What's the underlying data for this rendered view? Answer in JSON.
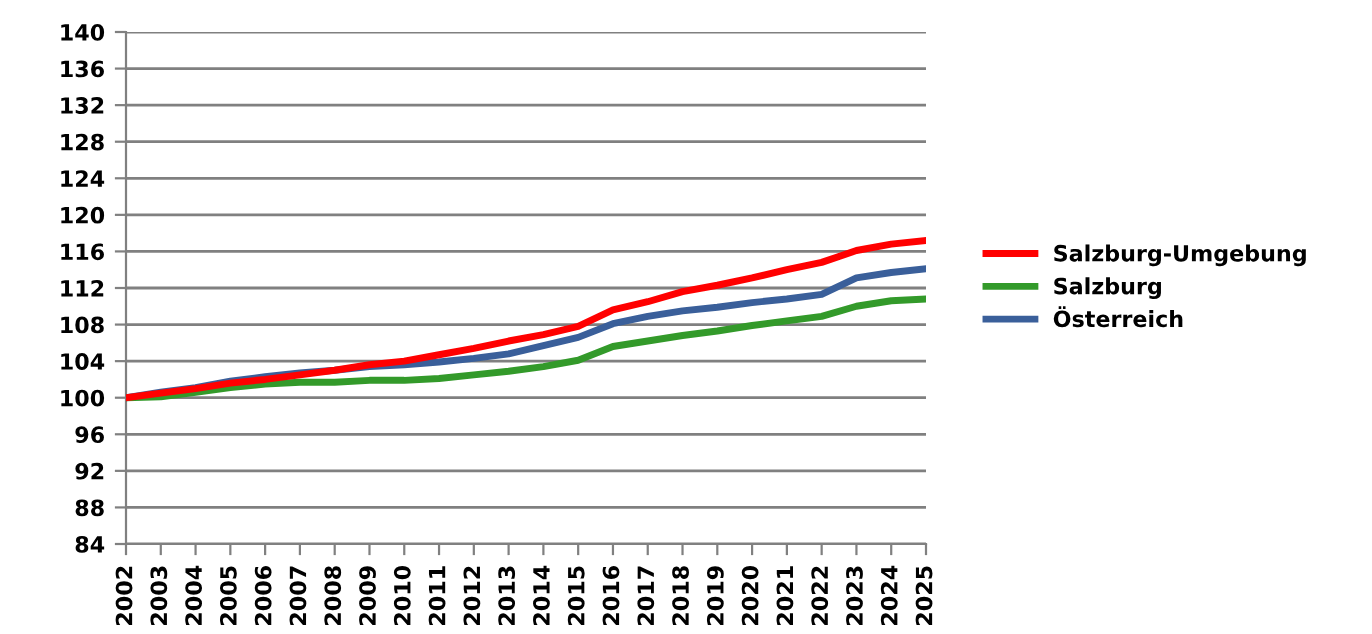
{
  "chart_data": {
    "type": "line",
    "categories": [
      "2002",
      "2003",
      "2004",
      "2005",
      "2006",
      "2007",
      "2008",
      "2009",
      "2010",
      "2011",
      "2012",
      "2013",
      "2014",
      "2015",
      "2016",
      "2017",
      "2018",
      "2019",
      "2020",
      "2021",
      "2022",
      "2023",
      "2024",
      "2025"
    ],
    "series": [
      {
        "name": "Salzburg-Umgebung",
        "color": "#ff0000",
        "values": [
          100,
          100.5,
          101,
          101.6,
          102,
          102.5,
          103,
          103.6,
          104,
          104.7,
          105.4,
          106.2,
          106.9,
          107.8,
          109.6,
          110.5,
          111.6,
          112.3,
          113.1,
          114,
          114.8,
          116.1,
          116.8,
          117.2
        ]
      },
      {
        "name": "Salzburg",
        "color": "#339a2a",
        "values": [
          100,
          100.1,
          100.6,
          101.1,
          101.5,
          101.7,
          101.7,
          101.9,
          101.9,
          102.1,
          102.5,
          102.9,
          103.4,
          104.1,
          105.6,
          106.2,
          106.8,
          107.3,
          107.9,
          108.4,
          108.9,
          110,
          110.6,
          110.8
        ]
      },
      {
        "name": "Österreich",
        "color": "#3a5f9a",
        "values": [
          100,
          100.6,
          101.1,
          101.8,
          102.3,
          102.7,
          103,
          103.4,
          103.6,
          103.9,
          104.3,
          104.8,
          105.7,
          106.6,
          108.1,
          108.9,
          109.5,
          109.9,
          110.4,
          110.8,
          111.3,
          113.1,
          113.7,
          114.1
        ]
      }
    ],
    "ylim": [
      84,
      140
    ],
    "yticks": [
      84,
      88,
      92,
      96,
      100,
      104,
      108,
      112,
      116,
      120,
      124,
      128,
      132,
      136,
      140
    ],
    "grid": "y",
    "legend": "right",
    "marker": "none",
    "line_style": "solid"
  }
}
